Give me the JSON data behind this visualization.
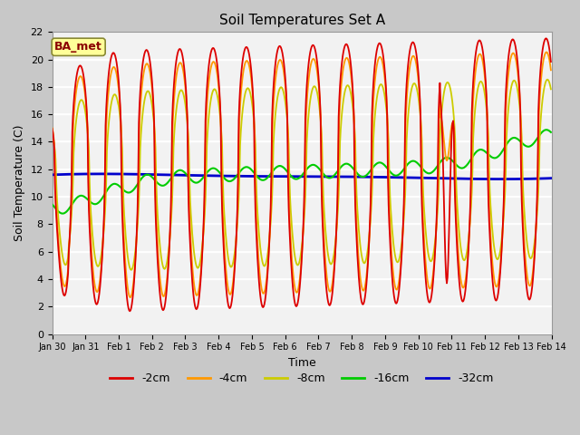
{
  "title": "Soil Temperatures Set A",
  "xlabel": "Time",
  "ylabel": "Soil Temperature (C)",
  "ylim": [
    0,
    22
  ],
  "yticks": [
    0,
    2,
    4,
    6,
    8,
    10,
    12,
    14,
    16,
    18,
    20,
    22
  ],
  "legend_label": "BA_met",
  "legend_text_color": "#8b0000",
  "series_colors": {
    "-2cm": "#dd0000",
    "-4cm": "#ff9900",
    "-8cm": "#cccc00",
    "-16cm": "#00cc00",
    "-32cm": "#0000cc"
  },
  "series_order": [
    "-32cm",
    "-16cm",
    "-8cm",
    "-4cm",
    "-2cm"
  ],
  "xtick_labels": [
    "Jan 30",
    "Jan 31",
    "Feb 1",
    "Feb 2",
    "Feb 3",
    "Feb 4",
    "Feb 5",
    "Feb 6",
    "Feb 7",
    "Feb 8",
    "Feb 9",
    "Feb 10",
    "Feb 11",
    "Feb 12",
    "Feb 13",
    "Feb 14"
  ],
  "xtick_positions": [
    0,
    1,
    2,
    3,
    4,
    5,
    6,
    7,
    8,
    9,
    10,
    11,
    12,
    13,
    14,
    15
  ],
  "figsize": [
    6.4,
    4.8
  ],
  "dpi": 100
}
